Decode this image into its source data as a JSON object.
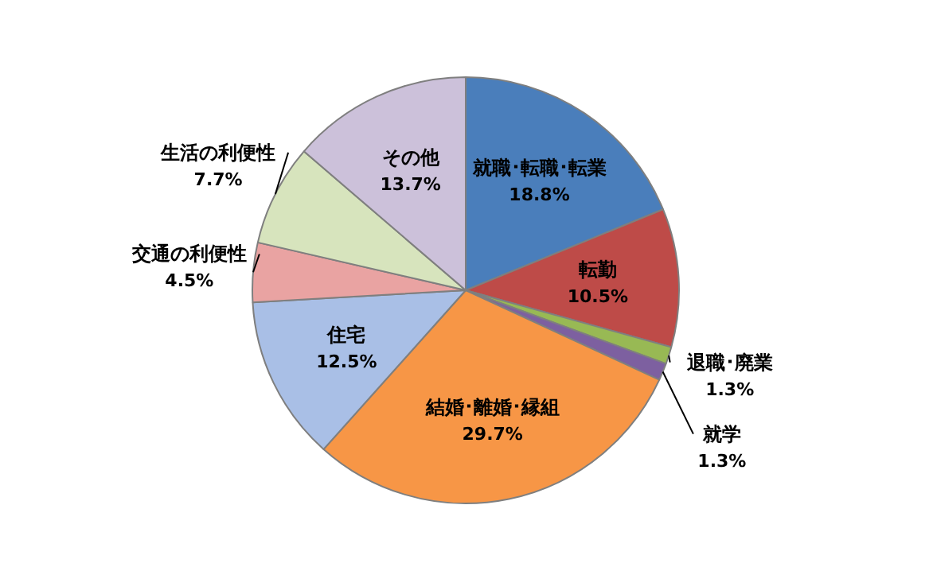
{
  "chart_data": {
    "type": "pie",
    "categories": [
      "就職･転職･転業",
      "転勤",
      "退職･廃業",
      "就学",
      "結婚･離婚･縁組",
      "住宅",
      "交通の利便性",
      "生活の利便性",
      "その他"
    ],
    "values": [
      18.8,
      10.5,
      1.3,
      1.3,
      29.7,
      12.5,
      4.5,
      7.7,
      13.7
    ],
    "value_labels": [
      "18.8%",
      "10.5%",
      "1.3%",
      "1.3%",
      "29.7%",
      "12.5%",
      "4.5%",
      "7.7%",
      "13.7%"
    ],
    "colors": [
      "#4a7ebb",
      "#be4b48",
      "#98b954",
      "#7d60a0",
      "#f79646",
      "#a9bfe6",
      "#e9a3a2",
      "#d7e4bd",
      "#ccc1da"
    ]
  }
}
